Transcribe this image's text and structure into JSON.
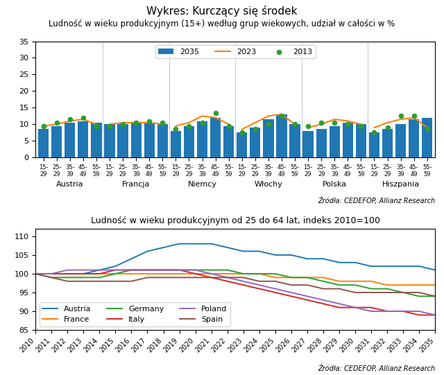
{
  "chart_data": [
    {
      "type": "bar",
      "title": "Wykres: Kurczący się środek",
      "subtitle": "Ludność w wieku produkcyjnym (15+) według grup wiekowych, udział w całości w %",
      "source": "Źródła: CEDEFOP, Allianz Research",
      "groups": [
        "Austria",
        "Francja",
        "Niemcy",
        "Włochy",
        "Polska",
        "Hiszpania"
      ],
      "categories": [
        "15-\n29",
        "25-\n29",
        "35-\n39",
        "45-\n49",
        "55-\n59",
        "15-\n29",
        "25-\n29",
        "35-\n39",
        "45-\n49",
        "55-\n59",
        "15-\n29",
        "25-\n29",
        "35-\n39",
        "45-\n49",
        "55-\n59",
        "15-\n29",
        "25-\n29",
        "35-\n39",
        "45-\n49",
        "55-\n59",
        "15-\n29",
        "25-\n29",
        "35-\n39",
        "45-\n49",
        "55-\n59",
        "15-\n29",
        "25-\n29",
        "35-\n39",
        "45-\n49",
        "55-\n59"
      ],
      "ylim": [
        0,
        35
      ],
      "yticks": [
        0,
        5,
        10,
        15,
        20,
        25,
        30,
        35
      ],
      "legend": "upper center",
      "series": [
        {
          "name": "2035",
          "type": "bar",
          "values": [
            8.5,
            9.5,
            10.5,
            11.0,
            10.5,
            10.0,
            10.0,
            10.5,
            10.5,
            10.0,
            8.0,
            9.5,
            11.0,
            12.0,
            9.5,
            7.5,
            9.0,
            11.5,
            13.0,
            10.0,
            8.0,
            8.5,
            9.5,
            10.5,
            10.0,
            7.5,
            8.5,
            10.0,
            11.5,
            12.0
          ]
        },
        {
          "name": "2023",
          "type": "line",
          "values": [
            9.5,
            10.0,
            11.0,
            11.5,
            10.0,
            10.0,
            10.5,
            10.5,
            10.5,
            10.0,
            9.5,
            10.5,
            12.5,
            12.0,
            10.0,
            8.5,
            10.5,
            12.5,
            13.0,
            10.0,
            9.0,
            10.0,
            11.5,
            11.0,
            10.0,
            9.0,
            10.5,
            11.5,
            12.0,
            9.0
          ]
        },
        {
          "name": "2013",
          "type": "scatter",
          "values": [
            9.5,
            10.5,
            11.5,
            12.0,
            9.5,
            9.5,
            10.0,
            10.5,
            11.0,
            10.5,
            8.5,
            9.5,
            10.5,
            13.5,
            9.5,
            7.5,
            8.5,
            10.0,
            12.5,
            10.0,
            9.5,
            10.5,
            10.5,
            10.0,
            9.5,
            7.5,
            9.0,
            12.5,
            12.5,
            8.5
          ]
        }
      ]
    },
    {
      "type": "line",
      "title": "Ludność w wieku produkcyjnym od 25 do 64 lat, indeks 2010=100",
      "source": "Źródła: CEDEFOP, Allianz Research",
      "x": [
        2010,
        2011,
        2012,
        2013,
        2014,
        2015,
        2016,
        2017,
        2018,
        2019,
        2020,
        2021,
        2022,
        2023,
        2024,
        2025,
        2026,
        2027,
        2028,
        2029,
        2030,
        2031,
        2032,
        2033,
        2034,
        2035
      ],
      "xlim": [
        2010,
        2035
      ],
      "xticks": [
        2010,
        2011,
        2012,
        2013,
        2014,
        2015,
        2016,
        2017,
        2018,
        2019,
        2020,
        2021,
        2022,
        2023,
        2024,
        2025,
        2026,
        2027,
        2028,
        2029,
        2030,
        2031,
        2032,
        2033,
        2034,
        2035
      ],
      "ylim": [
        85,
        112
      ],
      "yticks": [
        85,
        90,
        95,
        100,
        105,
        110
      ],
      "legend": "lower left",
      "series": [
        {
          "name": "Austria",
          "values": [
            100,
            100,
            100,
            100,
            101,
            102,
            104,
            106,
            107,
            108,
            108,
            108,
            107,
            106,
            106,
            105,
            105,
            104,
            104,
            103,
            103,
            102,
            102,
            102,
            102,
            101
          ]
        },
        {
          "name": "France",
          "values": [
            100,
            100,
            100,
            100,
            100,
            100,
            100,
            100,
            100,
            100,
            100,
            100,
            100,
            100,
            100,
            99,
            99,
            99,
            99,
            98,
            98,
            98,
            97,
            97,
            97,
            97
          ]
        },
        {
          "name": "Germany",
          "values": [
            100,
            99,
            99,
            99,
            99,
            100,
            101,
            101,
            101,
            101,
            101,
            101,
            101,
            100,
            100,
            100,
            99,
            99,
            98,
            97,
            97,
            96,
            96,
            95,
            94,
            94
          ]
        },
        {
          "name": "Italy",
          "values": [
            100,
            100,
            100,
            100,
            100,
            101,
            101,
            101,
            101,
            101,
            100,
            99,
            98,
            97,
            96,
            95,
            94,
            93,
            92,
            91,
            91,
            91,
            90,
            90,
            89,
            89
          ]
        },
        {
          "name": "Poland",
          "values": [
            100,
            100,
            101,
            101,
            101,
            101,
            101,
            101,
            101,
            101,
            101,
            100,
            99,
            98,
            97,
            96,
            95,
            94,
            93,
            92,
            91,
            90,
            90,
            90,
            90,
            89
          ]
        },
        {
          "name": "Spain",
          "values": [
            100,
            99,
            98,
            98,
            98,
            98,
            98,
            99,
            99,
            99,
            99,
            99,
            99,
            99,
            98,
            98,
            97,
            97,
            96,
            96,
            95,
            95,
            95,
            95,
            95,
            94
          ]
        }
      ]
    }
  ]
}
